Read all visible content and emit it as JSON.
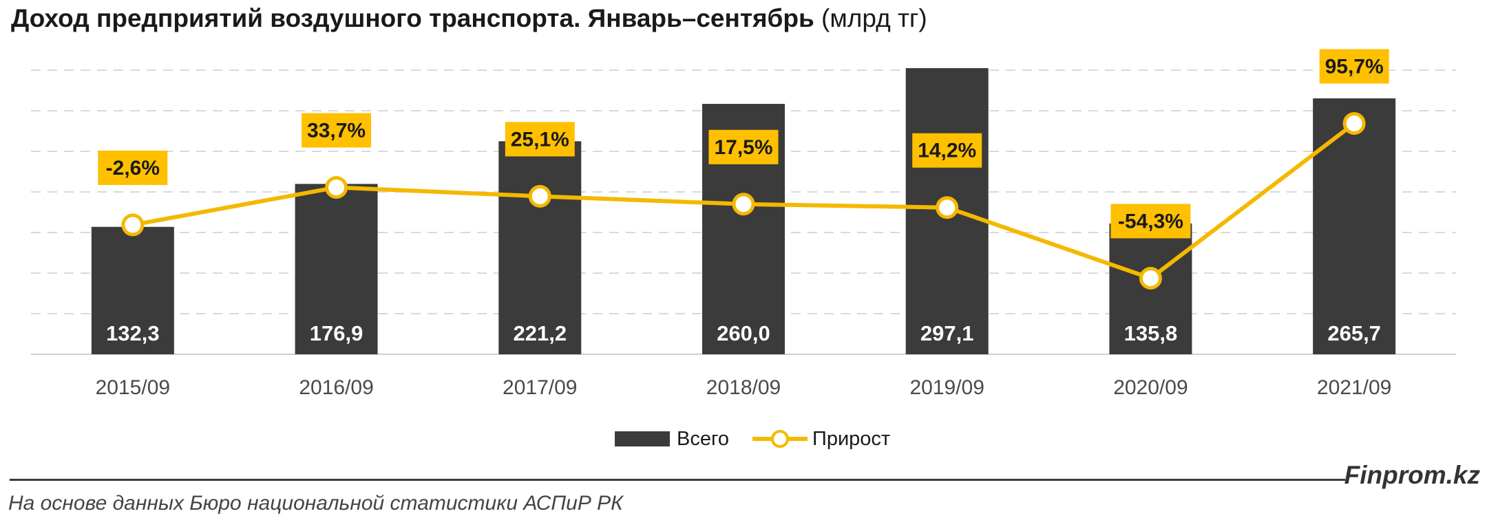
{
  "title": {
    "main": "Доход предприятий воздушного транспорта. Январь–сентябрь",
    "unit": "(млрд тг)"
  },
  "chart_data": {
    "type": "bar+line",
    "categories": [
      "2015/09",
      "2016/09",
      "2017/09",
      "2018/09",
      "2019/09",
      "2020/09",
      "2021/09"
    ],
    "series": [
      {
        "name": "Всего",
        "type": "bar",
        "axis": "primary",
        "values": [
          132.3,
          176.9,
          221.2,
          260.0,
          297.1,
          135.8,
          265.7
        ],
        "labels": [
          "132,3",
          "176,9",
          "221,2",
          "260,0",
          "297,1",
          "135,8",
          "265,7"
        ]
      },
      {
        "name": "Прирост",
        "type": "line",
        "axis": "secondary",
        "values": [
          -2.6,
          33.7,
          25.1,
          17.5,
          14.2,
          -54.3,
          95.7
        ],
        "labels": [
          "-2,6%",
          "33,7%",
          "25,1%",
          "17,5%",
          "14,2%",
          "-54,3%",
          "95,7%"
        ]
      }
    ],
    "legend_position": "bottom",
    "grid": true,
    "colors": {
      "bar": "#3b3b3b",
      "line": "#f5b800",
      "label_box": "#ffc000",
      "grid": "#d9d9d9"
    }
  },
  "footer": {
    "brand": "Finprom.kz",
    "source": "На основе данных Бюро национальной статистики АСПиР РК"
  }
}
